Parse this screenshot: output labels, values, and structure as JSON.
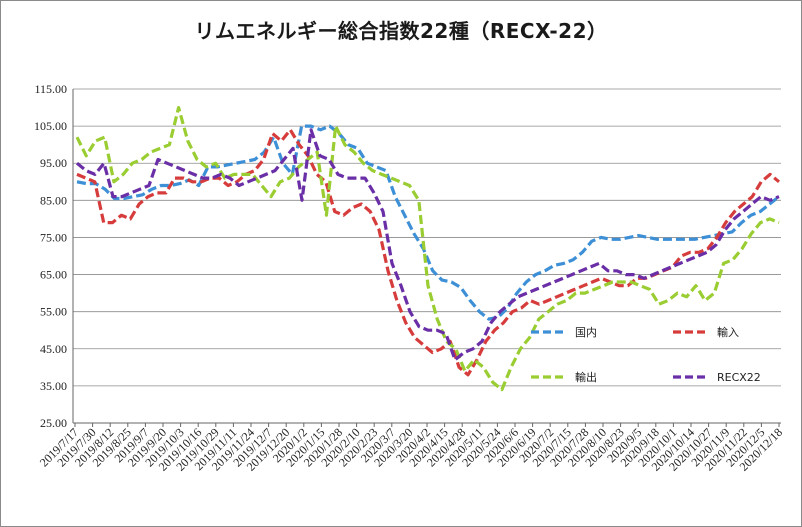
{
  "chart_data": {
    "type": "line",
    "title": "リムエネルギー総合指数22種（RECX-22）",
    "xlabel": "",
    "ylabel": "",
    "ylim": [
      25,
      115
    ],
    "yticks": [
      "115.00",
      "105.00",
      "95.00",
      "85.00",
      "75.00",
      "65.00",
      "55.00",
      "45.00",
      "35.00",
      "25.00"
    ],
    "grid": "horizontal",
    "legend_position": "bottom-right, inside plot",
    "x_tick_labels": [
      "2019/7/17",
      "2019/7/30",
      "2019/8/12",
      "2019/8/25",
      "2019/9/7",
      "2019/9/20",
      "2019/10/3",
      "2019/10/16",
      "2019/10/29",
      "2019/11/11",
      "2019/11/24",
      "2019/12/7",
      "2019/12/20",
      "2020/1/2",
      "2020/1/15",
      "2020/1/28",
      "2020/2/10",
      "2020/2/23",
      "2020/3/7",
      "2020/3/20",
      "2020/4/2",
      "2020/4/15",
      "2020/4/28",
      "2020/5/11",
      "2020/5/24",
      "2020/6/6",
      "2020/6/19",
      "2020/7/2",
      "2020/7/15",
      "2020/7/28",
      "2020/8/10",
      "2020/8/23",
      "2020/9/5",
      "2020/9/18",
      "2020/10/1",
      "2020/10/14",
      "2020/10/27",
      "2020/11/9",
      "2020/11/22",
      "2020/12/5",
      "2020/12/18"
    ],
    "series": [
      {
        "name": "国内",
        "color": "#3d8fd6",
        "values": [
          90,
          89.5,
          89.5,
          88,
          85.5,
          85.5,
          86,
          86.5,
          88,
          89,
          89,
          89.5,
          90.5,
          89,
          94,
          94,
          94.5,
          95,
          95.5,
          96,
          98,
          102,
          95,
          92,
          105,
          105,
          104,
          105,
          103,
          100,
          99,
          95,
          94,
          93,
          86,
          81,
          76,
          72,
          66,
          63.5,
          63,
          61.5,
          58,
          55,
          53,
          53.5,
          56,
          60,
          63,
          65,
          66,
          67.5,
          68,
          69,
          71,
          74,
          75,
          74.5,
          74.5,
          75,
          75.5,
          75,
          74.5,
          74.5,
          74.5,
          74.5,
          74.5,
          75,
          75.5,
          76,
          76.5,
          79,
          81,
          82,
          84,
          86
        ]
      },
      {
        "name": "輸入",
        "color": "#d63c3c",
        "values": [
          92,
          91,
          90,
          79,
          79,
          81,
          80,
          84,
          86,
          87,
          87,
          91,
          91,
          90,
          90,
          91,
          91,
          89,
          90,
          92,
          93,
          96,
          103,
          101,
          104,
          100,
          97,
          92,
          90,
          82,
          81,
          83,
          84,
          82,
          77,
          66,
          58,
          52,
          48,
          46,
          44,
          45,
          47,
          40,
          38,
          42,
          47,
          50,
          52,
          55,
          56,
          58,
          57,
          58,
          59,
          60,
          61,
          62,
          63,
          64,
          63,
          62,
          62,
          64,
          64,
          65,
          66,
          67,
          70,
          71,
          71,
          72,
          75,
          79,
          82,
          84,
          86,
          90,
          92,
          90
        ]
      },
      {
        "name": "輸出",
        "color": "#9acd32",
        "values": [
          102,
          97,
          101,
          102,
          90,
          92,
          95,
          96,
          98,
          99,
          100,
          110,
          101,
          96,
          94,
          95,
          91,
          92,
          92,
          92,
          89,
          86,
          90,
          91,
          94,
          96,
          98,
          81,
          105,
          100,
          98,
          95,
          93,
          92,
          91,
          90,
          89,
          85,
          62,
          53,
          47,
          45,
          39,
          42,
          40,
          36,
          34,
          40,
          45,
          48,
          53,
          55,
          57,
          58,
          60,
          60,
          61,
          62,
          63,
          63,
          63,
          62,
          61,
          57,
          58,
          60,
          59,
          62,
          58,
          60,
          68,
          69,
          72,
          76,
          79,
          80,
          79
        ]
      },
      {
        "name": "RECX22",
        "color": "#6a2ea6",
        "values": [
          95,
          93,
          92,
          95,
          86,
          86,
          87,
          88,
          89,
          96,
          95,
          94,
          93,
          92,
          91,
          91,
          92,
          91,
          89,
          90,
          91,
          92,
          93,
          96,
          99,
          85,
          104,
          97,
          96,
          92,
          91,
          91,
          91,
          87,
          82,
          68,
          62,
          55,
          51,
          50,
          50,
          49,
          42,
          44,
          45,
          47,
          52,
          55,
          57,
          59,
          60,
          61,
          62,
          63,
          64,
          65,
          66,
          67,
          68,
          66,
          66,
          65,
          65,
          64,
          65,
          66,
          67,
          68,
          69,
          70,
          71,
          73,
          77,
          80,
          82,
          84,
          86,
          85,
          86
        ]
      }
    ]
  }
}
